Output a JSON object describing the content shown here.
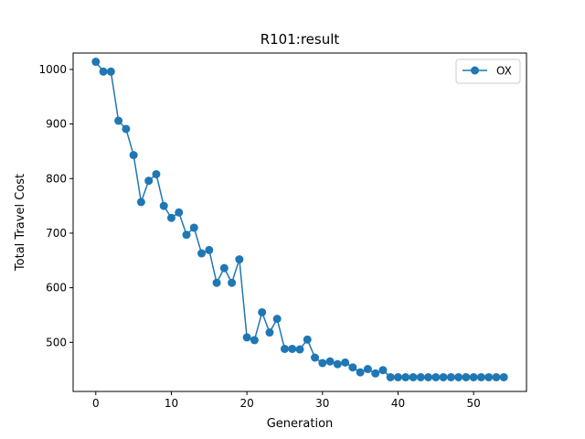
{
  "chart_data": {
    "type": "line",
    "title": "R101:result",
    "xlabel": "Generation",
    "ylabel": "Total Travel Cost",
    "xlim": [
      -3,
      57
    ],
    "ylim": [
      410,
      1030
    ],
    "xticks": [
      0,
      10,
      20,
      30,
      40,
      50
    ],
    "yticks": [
      500,
      600,
      700,
      800,
      900,
      1000
    ],
    "grid": false,
    "legend": {
      "position": "top-right"
    },
    "series": [
      {
        "name": "OX",
        "color": "#1f77b4",
        "marker": "circle",
        "x": [
          0,
          1,
          2,
          3,
          4,
          5,
          6,
          7,
          8,
          9,
          10,
          11,
          12,
          13,
          14,
          15,
          16,
          17,
          18,
          19,
          20,
          21,
          22,
          23,
          24,
          25,
          26,
          27,
          28,
          29,
          30,
          31,
          32,
          33,
          34,
          35,
          36,
          37,
          38,
          39,
          40,
          41,
          42,
          43,
          44,
          45,
          46,
          47,
          48,
          49,
          50,
          51,
          52,
          53,
          54
        ],
        "y": [
          1014,
          996,
          996,
          906,
          891,
          843,
          757,
          796,
          808,
          750,
          728,
          738,
          697,
          710,
          663,
          669,
          609,
          636,
          609,
          652,
          509,
          504,
          555,
          518,
          543,
          488,
          488,
          487,
          505,
          472,
          462,
          465,
          460,
          463,
          454,
          445,
          451,
          443,
          449,
          436,
          436,
          436,
          436,
          436,
          436,
          436,
          436,
          436,
          436,
          436,
          436,
          436,
          436,
          436,
          436
        ]
      }
    ]
  }
}
